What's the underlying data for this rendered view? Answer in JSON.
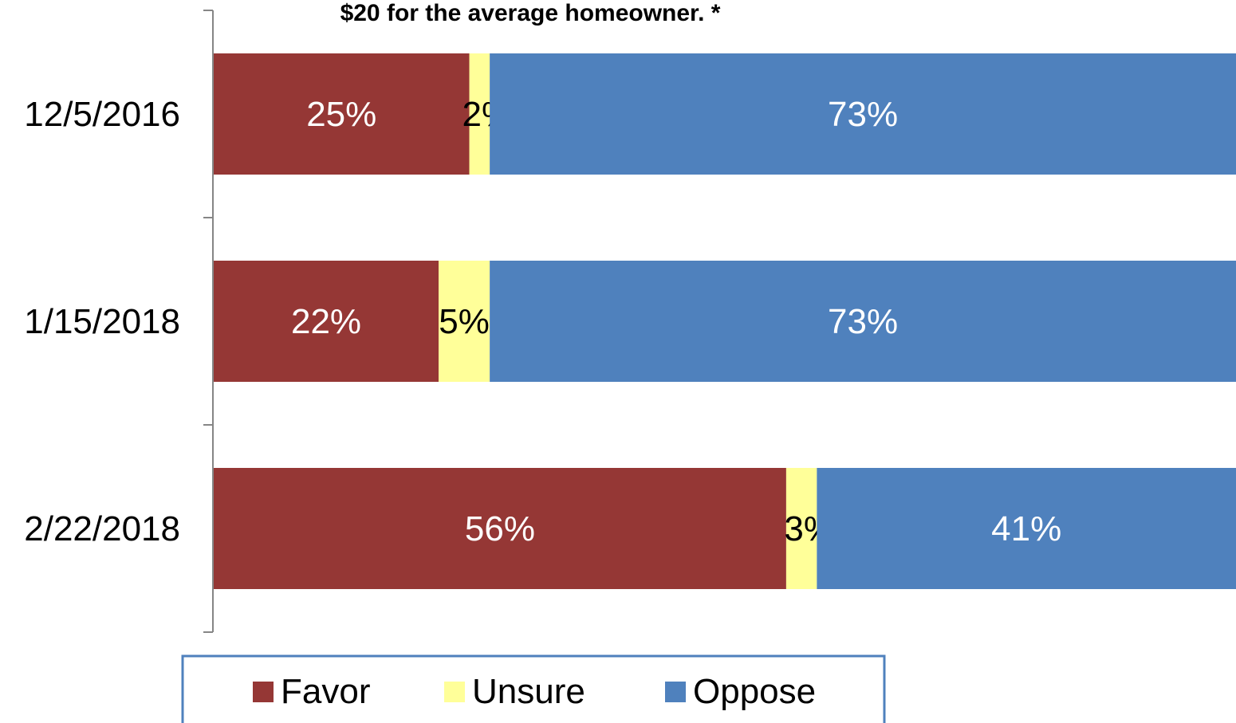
{
  "chart_data": {
    "type": "bar",
    "orientation": "horizontal",
    "stacked": true,
    "title": "$20 for the average homeowner. *",
    "categories": [
      "12/5/2016",
      "1/15/2018",
      "2/22/2018"
    ],
    "series": [
      {
        "name": "Favor",
        "values": [
          25,
          22,
          56
        ],
        "labels": [
          "25%",
          "22%",
          "56%"
        ],
        "color": "#953735",
        "label_color": "#ffffff"
      },
      {
        "name": "Unsure",
        "values": [
          2,
          5,
          3
        ],
        "labels": [
          "2%",
          "5%",
          "3%"
        ],
        "color": "#ffff99",
        "label_color": "#000000"
      },
      {
        "name": "Oppose",
        "values": [
          73,
          73,
          41
        ],
        "labels": [
          "73%",
          "73%",
          "41%"
        ],
        "color": "#4f81bd",
        "label_color": "#ffffff"
      }
    ],
    "xlim": [
      0,
      100
    ],
    "grid": false,
    "legend": {
      "position": "bottom"
    }
  }
}
